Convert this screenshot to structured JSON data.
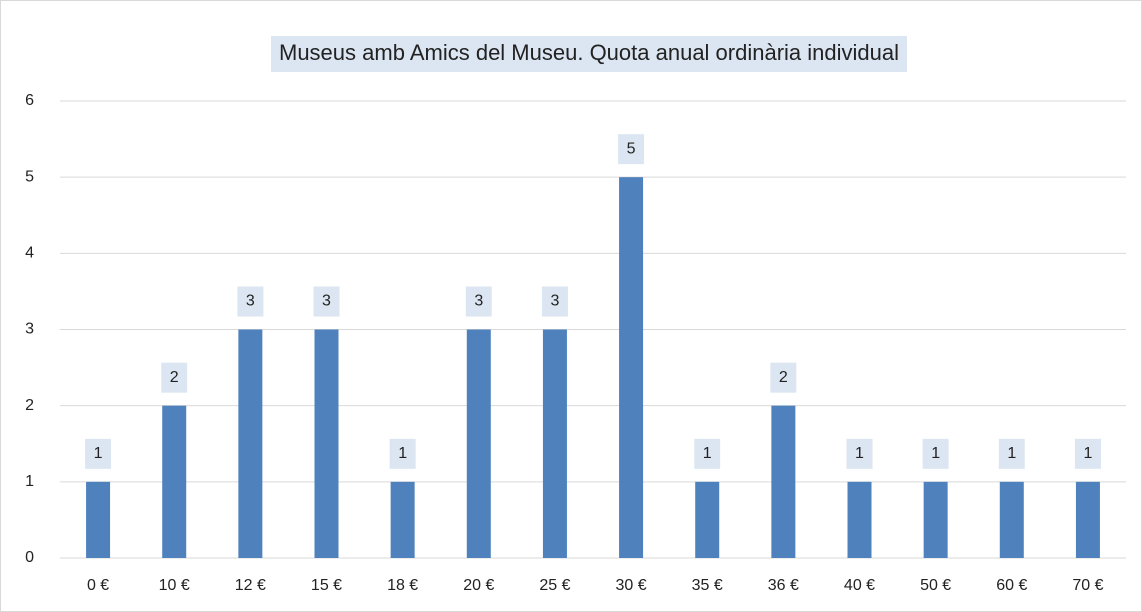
{
  "chart_data": {
    "type": "bar",
    "title": "Museus amb Amics del Museu. Quota anual ordinària individual",
    "categories": [
      "0 €",
      "10 €",
      "12 €",
      "15 €",
      "18 €",
      "20 €",
      "25 €",
      "30 €",
      "35 €",
      "36 €",
      "40 €",
      "50 €",
      "60 €",
      "70 €"
    ],
    "values": [
      1,
      2,
      3,
      3,
      1,
      3,
      3,
      5,
      1,
      2,
      1,
      1,
      1,
      1
    ],
    "color": "#4f81bd",
    "ylim": [
      0,
      6
    ],
    "yticks": [
      0,
      1,
      2,
      3,
      4,
      5,
      6
    ],
    "grid": true
  }
}
